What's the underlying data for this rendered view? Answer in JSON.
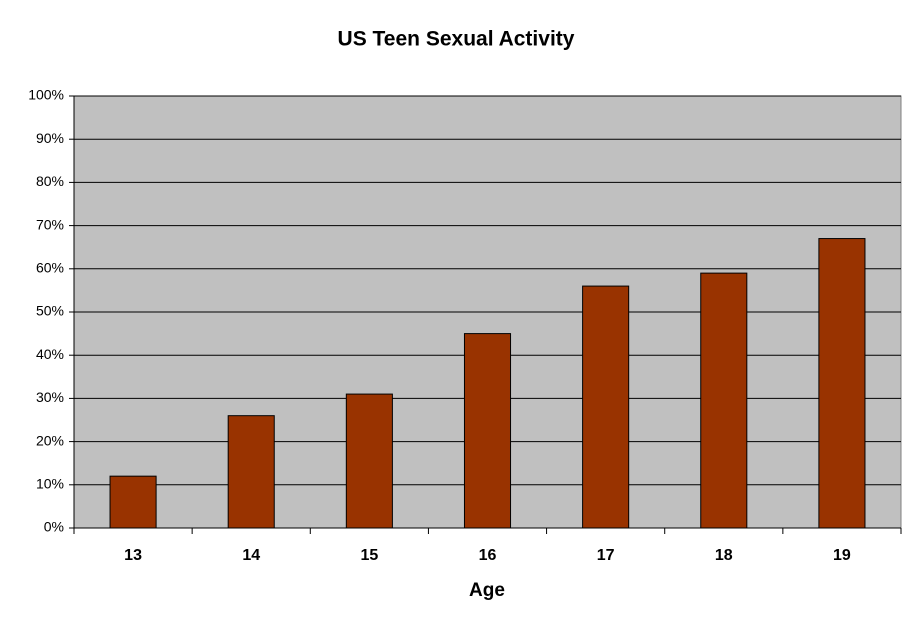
{
  "chart_data": {
    "type": "bar",
    "title": "US Teen Sexual Activity",
    "x_label": "Age",
    "categories": [
      "13",
      "14",
      "15",
      "16",
      "17",
      "18",
      "19"
    ],
    "values": [
      12,
      26,
      31,
      45,
      56,
      59,
      67
    ],
    "color": "#993300",
    "ylim": [
      0,
      100
    ],
    "yticks": [
      {
        "value": 0,
        "label": "0%"
      },
      {
        "value": 10,
        "label": "10%"
      },
      {
        "value": 20,
        "label": "20%"
      },
      {
        "value": 30,
        "label": "30%"
      },
      {
        "value": 40,
        "label": "40%"
      },
      {
        "value": 50,
        "label": "50%"
      },
      {
        "value": 60,
        "label": "60%"
      },
      {
        "value": 70,
        "label": "70%"
      },
      {
        "value": 80,
        "label": "80%"
      },
      {
        "value": 90,
        "label": "90%"
      },
      {
        "value": 100,
        "label": "100%"
      }
    ],
    "grid": true
  }
}
